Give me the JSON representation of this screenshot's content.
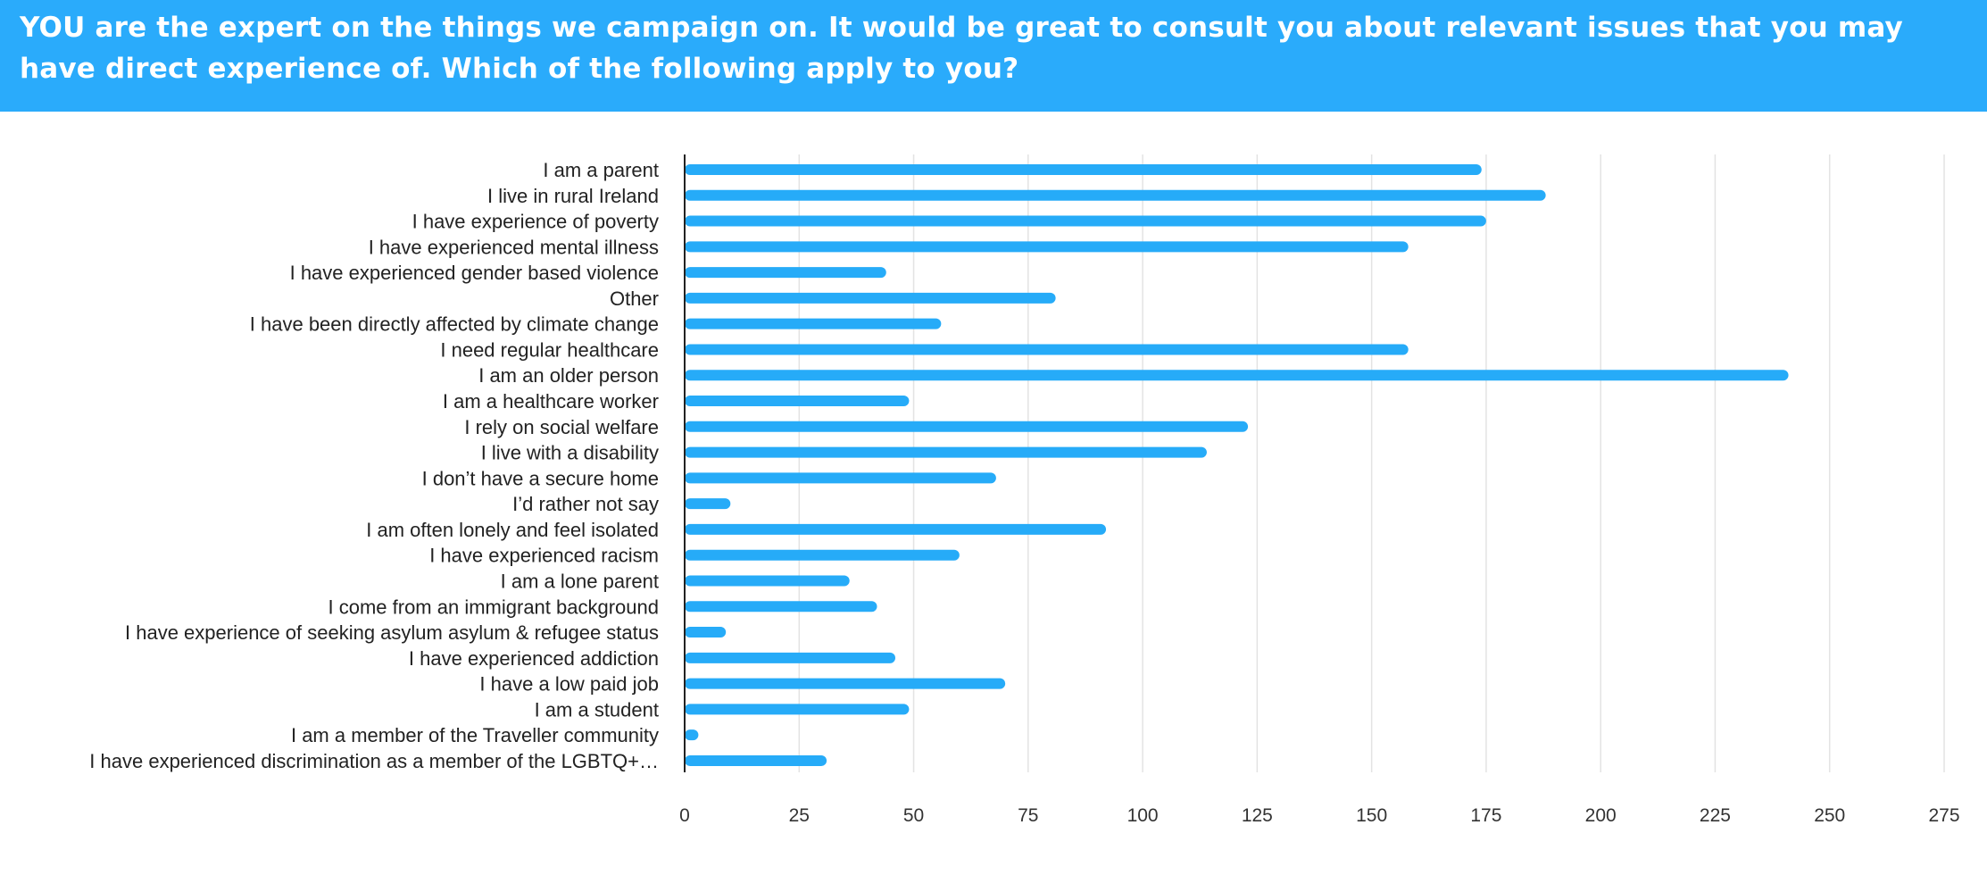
{
  "header": {
    "title": "YOU are the expert on the things we campaign on. It would be great to consult you about relevant issues that you may have direct experience of. Which of the following apply to you?"
  },
  "colors": {
    "header_bg": "#2aabfb",
    "bar": "#26abf8",
    "grid": "#e3e3e3",
    "axis": "#222222"
  },
  "chart_data": {
    "type": "bar",
    "orientation": "horizontal",
    "title": "YOU are the expert on the things we campaign on. It would be great to consult you about relevant issues that you may have direct experience of. Which of the following apply to you?",
    "categories": [
      "I am a parent",
      "I live in rural Ireland",
      "I have experience of poverty",
      "I have experienced mental illness",
      "I have experienced gender based violence",
      "Other",
      "I have been directly affected by climate change",
      "I need regular healthcare",
      "I am an older person",
      "I am a healthcare worker",
      "I rely on social welfare",
      "I live with a disability",
      "I don’t have a secure home",
      "I’d rather not say",
      "I am often lonely and feel isolated",
      "I have experienced racism",
      "I am a lone parent",
      "I come from an immigrant background",
      "I have experience of seeking asylum asylum & refugee status",
      "I have experienced addiction",
      "I have a low paid job",
      "I am a student",
      "I am a member of the Traveller community",
      "I have experienced discrimination as a member of the LGBTQ+…"
    ],
    "values": [
      174,
      188,
      175,
      158,
      44,
      81,
      56,
      158,
      241,
      49,
      123,
      114,
      68,
      10,
      92,
      60,
      36,
      42,
      9,
      46,
      70,
      49,
      3,
      31
    ],
    "xlim": [
      0,
      275
    ],
    "x_ticks": [
      0,
      25,
      50,
      75,
      100,
      125,
      150,
      175,
      200,
      225,
      250,
      275
    ],
    "grid": true,
    "legend": "none"
  }
}
